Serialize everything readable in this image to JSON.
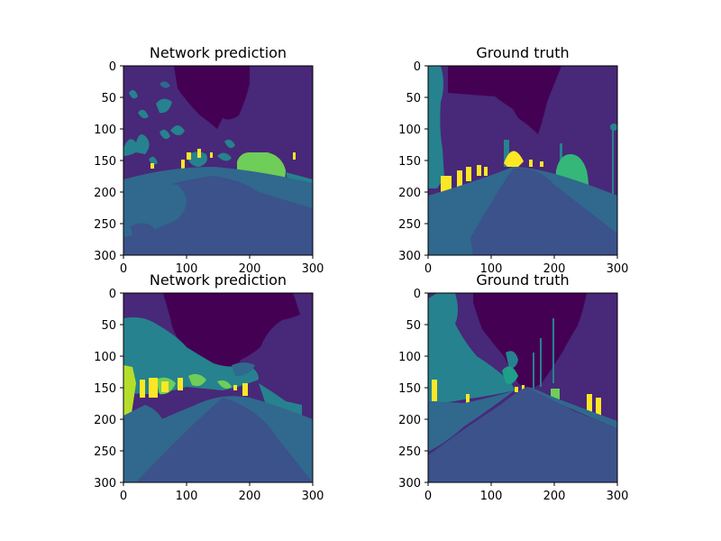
{
  "figure": {
    "background": "#ffffff",
    "colormap": "viridis",
    "palette": {
      "sky": "#440154",
      "building": "#482878",
      "road": "#3b528b",
      "sidewalk": "#31688e",
      "vegetation": "#26828e",
      "terrain": "#35b779",
      "car": "#6ece58",
      "yellow_green": "#b5de2b",
      "sign": "#fde725",
      "green_light": "#1f9e89"
    }
  },
  "chart_data": [
    {
      "type": "heatmap",
      "title": "Network prediction",
      "xlim": [
        0,
        300
      ],
      "ylim": [
        300,
        0
      ],
      "xticks": [
        0,
        100,
        200,
        300
      ],
      "yticks": [
        0,
        50,
        100,
        150,
        200,
        250,
        300
      ],
      "y_inverted": true,
      "grid": false,
      "xlabel": "",
      "ylabel": ""
    },
    {
      "type": "heatmap",
      "title": "Ground truth",
      "xlim": [
        0,
        300
      ],
      "ylim": [
        300,
        0
      ],
      "xticks": [
        0,
        100,
        200,
        300
      ],
      "yticks": [
        0,
        50,
        100,
        150,
        200,
        250,
        300
      ],
      "y_inverted": true,
      "grid": false,
      "xlabel": "",
      "ylabel": ""
    },
    {
      "type": "heatmap",
      "title": "Network prediction",
      "xlim": [
        0,
        300
      ],
      "ylim": [
        300,
        0
      ],
      "xticks": [
        0,
        100,
        200,
        300
      ],
      "yticks": [
        0,
        50,
        100,
        150,
        200,
        250,
        300
      ],
      "y_inverted": true,
      "grid": false,
      "xlabel": "",
      "ylabel": ""
    },
    {
      "type": "heatmap",
      "title": "Ground truth",
      "xlim": [
        0,
        300
      ],
      "ylim": [
        300,
        0
      ],
      "xticks": [
        0,
        100,
        200,
        300
      ],
      "yticks": [
        0,
        50,
        100,
        150,
        200,
        250,
        300
      ],
      "y_inverted": true,
      "grid": false,
      "xlabel": "",
      "ylabel": ""
    }
  ]
}
